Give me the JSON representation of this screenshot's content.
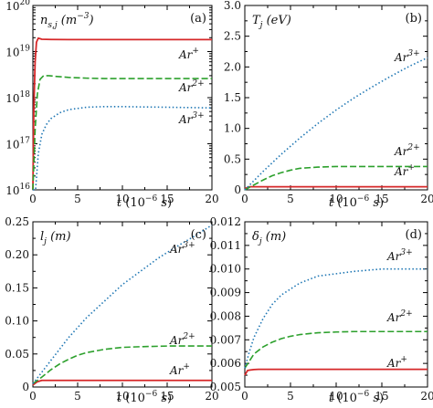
{
  "chart_data": [
    {
      "panel": "(a)",
      "type": "line",
      "ylabel": "n_s,j (m^-3)",
      "ylabel_text": "n",
      "ylabel_sub": "s,j",
      "ylabel_unit": "(m",
      "ylabel_unit_sup": "−3",
      "ylabel_unit_close": ")",
      "xlabel": "t (10^-6 s)",
      "xlim": [
        0,
        20
      ],
      "ylim": [
        1e+16,
        1e+20
      ],
      "yscale": "log",
      "xticks": [
        "0",
        "5",
        "10",
        "15",
        "20"
      ],
      "yticks": [
        {
          "base": "10",
          "exp": "16"
        },
        {
          "base": "10",
          "exp": "17"
        },
        {
          "base": "10",
          "exp": "18"
        },
        {
          "base": "10",
          "exp": "19"
        },
        {
          "base": "10",
          "exp": "20"
        }
      ],
      "series": [
        {
          "name": "Ar+",
          "label_base": "Ar",
          "label_sup": "+",
          "color": "#d62728",
          "dash": "solid",
          "x": [
            0,
            0.1,
            0.25,
            0.4,
            0.6,
            0.8,
            1.0,
            2,
            4,
            8,
            12,
            16,
            20
          ],
          "y": [
            1e+16,
            5e+17,
            6e+18,
            1.6e+19,
            1.95e+19,
            1.9e+19,
            1.85e+19,
            1.83e+19,
            1.82e+19,
            1.82e+19,
            1.82e+19,
            1.82e+19,
            1.82e+19
          ]
        },
        {
          "name": "Ar2+",
          "label_base": "Ar",
          "label_sup": "2+",
          "color": "#2ca02c",
          "dash": "dashed",
          "x": [
            0,
            0.25,
            0.5,
            0.8,
            1.2,
            1.8,
            2.5,
            4,
            6,
            8,
            10,
            12,
            15,
            20
          ],
          "y": [
            1e+16,
            2e+17,
            1.2e+18,
            2.5e+18,
            3e+18,
            3e+18,
            2.9e+18,
            2.75e+18,
            2.65e+18,
            2.6e+18,
            2.6e+18,
            2.6e+18,
            2.6e+18,
            2.6e+18
          ]
        },
        {
          "name": "Ar3+",
          "label_base": "Ar",
          "label_sup": "3+",
          "color": "#1f77b4",
          "dash": "dotted",
          "x": [
            0,
            0.3,
            0.6,
            1.0,
            1.5,
            2.0,
            3.0,
            4.0,
            6.0,
            8.0,
            10,
            12,
            15,
            20
          ],
          "y": [
            1e+16,
            1e+16,
            6e+16,
            1.6e+17,
            2.6e+17,
            3.5e+17,
            4.7e+17,
            5.5e+17,
            6.2e+17,
            6.4e+17,
            6.4e+17,
            6.3e+17,
            6.2e+17,
            6e+17
          ]
        }
      ]
    },
    {
      "panel": "(b)",
      "type": "line",
      "ylabel": "T_j (eV)",
      "ylabel_text": "T",
      "ylabel_sub": "j",
      "ylabel_unit": "(eV)",
      "xlabel": "t (10^-6 s)",
      "xlim": [
        0,
        20
      ],
      "ylim": [
        0,
        3
      ],
      "yscale": "linear",
      "xticks": [
        "0",
        "5",
        "10",
        "15",
        "20"
      ],
      "yticks": [
        "0",
        "0.5",
        "1.0",
        "1.5",
        "2.0",
        "2.5",
        "3.0"
      ],
      "series": [
        {
          "name": "Ar+",
          "label_base": "Ar",
          "label_sup": "+",
          "color": "#d62728",
          "dash": "solid",
          "x": [
            0,
            0.5,
            1,
            2,
            5,
            10,
            15,
            20
          ],
          "y": [
            0.02,
            0.05,
            0.05,
            0.05,
            0.05,
            0.05,
            0.05,
            0.05
          ]
        },
        {
          "name": "Ar2+",
          "label_base": "Ar",
          "label_sup": "2+",
          "color": "#2ca02c",
          "dash": "dashed",
          "x": [
            0,
            1,
            2,
            3,
            4,
            5,
            6,
            8,
            10,
            12,
            15,
            20
          ],
          "y": [
            0,
            0.08,
            0.16,
            0.23,
            0.28,
            0.32,
            0.35,
            0.37,
            0.38,
            0.38,
            0.38,
            0.38
          ]
        },
        {
          "name": "Ar3+",
          "label_base": "Ar",
          "label_sup": "3+",
          "color": "#1f77b4",
          "dash": "dotted",
          "x": [
            0,
            2,
            4,
            6,
            8,
            10,
            12,
            14,
            16,
            18,
            20
          ],
          "y": [
            0,
            0.3,
            0.58,
            0.84,
            1.08,
            1.3,
            1.5,
            1.68,
            1.85,
            2.01,
            2.15
          ]
        }
      ]
    },
    {
      "panel": "(c)",
      "type": "line",
      "ylabel": "l_j (m)",
      "ylabel_text": "l",
      "ylabel_sub": "j",
      "ylabel_unit": "(m)",
      "xlabel": "t (10^-6 s)",
      "xlim": [
        0,
        20
      ],
      "ylim": [
        0,
        0.25
      ],
      "yscale": "linear",
      "xticks": [
        "0",
        "5",
        "10",
        "15",
        "20"
      ],
      "yticks": [
        "0",
        "0.05",
        "0.10",
        "0.15",
        "0.20",
        "0.25"
      ],
      "series": [
        {
          "name": "Ar+",
          "label_base": "Ar",
          "label_sup": "+",
          "color": "#d62728",
          "dash": "solid",
          "x": [
            0,
            0.5,
            1,
            2,
            5,
            10,
            15,
            20
          ],
          "y": [
            0.003,
            0.008,
            0.01,
            0.01,
            0.01,
            0.01,
            0.01,
            0.01
          ]
        },
        {
          "name": "Ar2+",
          "label_base": "Ar",
          "label_sup": "2+",
          "color": "#2ca02c",
          "dash": "dashed",
          "x": [
            0,
            1,
            2,
            3,
            4,
            5,
            6,
            8,
            10,
            12,
            15,
            20
          ],
          "y": [
            0.005,
            0.015,
            0.026,
            0.035,
            0.042,
            0.048,
            0.052,
            0.057,
            0.06,
            0.061,
            0.062,
            0.062
          ]
        },
        {
          "name": "Ar3+",
          "label_base": "Ar",
          "label_sup": "3+",
          "color": "#1f77b4",
          "dash": "dotted",
          "x": [
            0,
            2,
            4,
            6,
            8,
            10,
            12,
            14,
            16,
            18,
            20
          ],
          "y": [
            0.005,
            0.04,
            0.075,
            0.105,
            0.13,
            0.155,
            0.175,
            0.195,
            0.212,
            0.228,
            0.245
          ]
        }
      ]
    },
    {
      "panel": "(d)",
      "type": "line",
      "ylabel": "δ_j (m)",
      "ylabel_text": "δ",
      "ylabel_sub": "j",
      "ylabel_unit": "(m)",
      "xlabel": "t (10^-6 s)",
      "xlim": [
        0,
        20
      ],
      "ylim": [
        0.005,
        0.012
      ],
      "yscale": "linear",
      "xticks": [
        "0",
        "5",
        "10",
        "15",
        "20"
      ],
      "yticks": [
        "0.005",
        "0.006",
        "0.007",
        "0.008",
        "0.009",
        "0.010",
        "0.011",
        "0.012"
      ],
      "series": [
        {
          "name": "Ar+",
          "label_base": "Ar",
          "label_sup": "+",
          "color": "#d62728",
          "dash": "solid",
          "x": [
            0,
            0.3,
            0.6,
            1.0,
            1.5,
            2,
            3,
            5,
            10,
            15,
            20
          ],
          "y": [
            0.0055,
            0.0057,
            0.00572,
            0.00574,
            0.00575,
            0.00575,
            0.00575,
            0.00575,
            0.00575,
            0.00575,
            0.00575
          ]
        },
        {
          "name": "Ar2+",
          "label_base": "Ar",
          "label_sup": "2+",
          "color": "#2ca02c",
          "dash": "dashed",
          "x": [
            0,
            0.5,
            1,
            2,
            3,
            4,
            5,
            6,
            8,
            10,
            12,
            15,
            20
          ],
          "y": [
            0.0058,
            0.0061,
            0.0064,
            0.0067,
            0.0069,
            0.00705,
            0.00715,
            0.00722,
            0.0073,
            0.00733,
            0.00735,
            0.00735,
            0.00735
          ]
        },
        {
          "name": "Ar3+",
          "label_base": "Ar",
          "label_sup": "3+",
          "color": "#1f77b4",
          "dash": "dotted",
          "x": [
            0,
            0.5,
            1,
            2,
            3,
            4,
            6,
            8,
            10,
            12,
            15,
            20
          ],
          "y": [
            0.0058,
            0.0065,
            0.0071,
            0.0079,
            0.0085,
            0.0089,
            0.0094,
            0.0097,
            0.0098,
            0.0099,
            0.01,
            0.01
          ]
        }
      ]
    }
  ]
}
